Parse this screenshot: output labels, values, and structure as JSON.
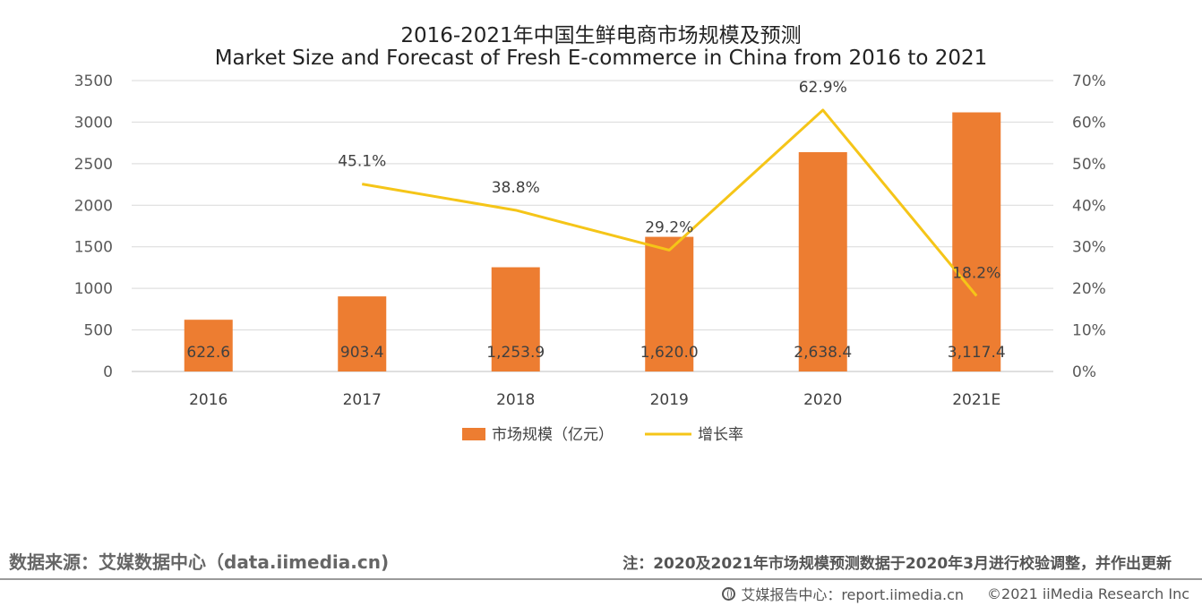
{
  "title_cn": "2016-2021年中国生鲜电商市场规模及预测",
  "title_en": "Market Size and Forecast of Fresh E-commerce in China from 2016 to 2021",
  "chart_data": {
    "type": "bar",
    "categories": [
      "2016",
      "2017",
      "2018",
      "2019",
      "2020",
      "2021E"
    ],
    "series": [
      {
        "name": "市场规模（亿元）",
        "type": "bar",
        "axis": "left",
        "values": [
          622.6,
          903.4,
          1253.9,
          1620.0,
          2638.4,
          3117.4
        ],
        "labels": [
          "622.6",
          "903.4",
          "1,253.9",
          "1,620.0",
          "2,638.4",
          "3,117.4"
        ],
        "color": "#ED7D31"
      },
      {
        "name": "增长率",
        "type": "line",
        "axis": "right",
        "values": [
          null,
          45.1,
          38.8,
          29.2,
          62.9,
          18.2
        ],
        "labels": [
          "",
          "45.1%",
          "38.8%",
          "29.2%",
          "62.9%",
          "18.2%"
        ],
        "color": "#F5C518"
      }
    ],
    "y_left": {
      "min": 0,
      "max": 3500,
      "ticks": [
        "0",
        "500",
        "1000",
        "1500",
        "2000",
        "2500",
        "3000",
        "3500"
      ]
    },
    "y_right": {
      "min": 0,
      "max": 70,
      "ticks": [
        "0%",
        "10%",
        "20%",
        "30%",
        "40%",
        "50%",
        "60%",
        "70%"
      ]
    },
    "grid": true,
    "legend_position": "bottom"
  },
  "footer": {
    "source": "数据来源：艾媒数据中心（data.iimedia.cn)",
    "note": "注：2020及2021年市场规模预测数据于2020年3月进行校验调整，并作出更新",
    "report_center": "艾媒报告中心：report.iimedia.cn",
    "copyright": "©2021  iiMedia Research  Inc"
  }
}
